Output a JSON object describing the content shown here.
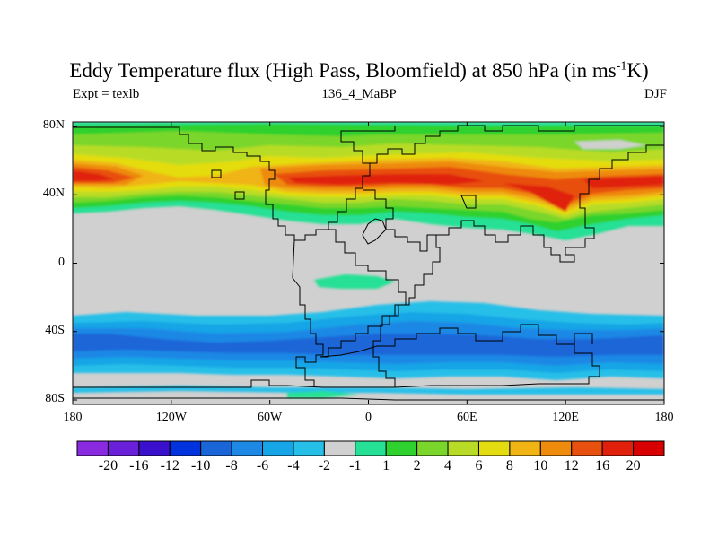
{
  "title": {
    "main": "Eddy Temperature flux (High Pass, Bloomfield) at 850 hPa (in ms",
    "superscript": "-1",
    "unit_tail": "K)"
  },
  "subtitle": {
    "left": "Expt = texlb",
    "center": "136_4_MaBP",
    "right": "DJF"
  },
  "axes": {
    "y_ticks": [
      "80N",
      "40N",
      "0",
      "40S",
      "80S"
    ],
    "x_ticks": [
      "180",
      "120W",
      "60W",
      "0",
      "60E",
      "120E",
      "180"
    ]
  },
  "colorbar": {
    "labels": [
      "-20",
      "-16",
      "-12",
      "-10",
      "-8",
      "-6",
      "-4",
      "-2",
      "-1",
      "1",
      "2",
      "4",
      "6",
      "8",
      "10",
      "12",
      "16",
      "20"
    ],
    "colors": [
      "#8a2be2",
      "#6a1fd8",
      "#3a10cc",
      "#0033dd",
      "#1a66d8",
      "#1e88e5",
      "#16a5e6",
      "#26bfe8",
      "#d0d0d0",
      "#26e095",
      "#2ed12e",
      "#7ad62a",
      "#b8dc26",
      "#e4dc10",
      "#f0b414",
      "#ee8a0c",
      "#e8500f",
      "#e0200a",
      "#d80000"
    ]
  },
  "palette": {
    "land_missing": "#d0d0d0",
    "coastline": "#000000"
  }
}
